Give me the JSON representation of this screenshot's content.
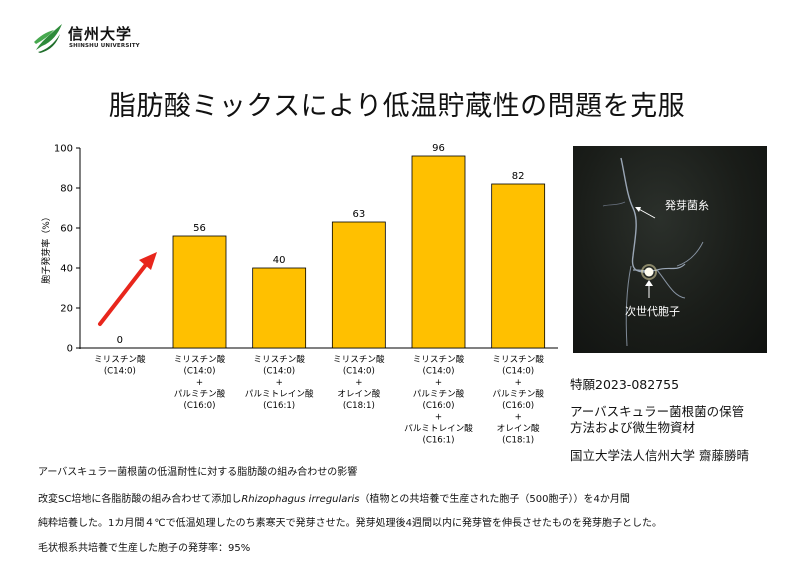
{
  "logo": {
    "name": "信州大学",
    "subtitle": "SHINSHU UNIVERSITY",
    "leaf_color": "#2e8b3a"
  },
  "title": "脂肪酸ミックスにより低温貯蔵性の問題を克服",
  "chart_data": {
    "type": "bar",
    "ylabel": "胞子発芽率（%）",
    "ylim": [
      0,
      100
    ],
    "yticks": [
      0,
      20,
      40,
      60,
      80,
      100
    ],
    "bar_color": "#ffc000",
    "arrow_color": "#e8261c",
    "categories": [
      [
        "ミリスチン酸",
        "(C14:0)"
      ],
      [
        "ミリスチン酸",
        "(C14:0)",
        "+",
        "パルミチン酸",
        "(C16:0)"
      ],
      [
        "ミリスチン酸",
        "(C14:0)",
        "+",
        "パルミトレイン酸",
        "(C16:1)"
      ],
      [
        "ミリスチン酸",
        "(C14:0)",
        "+",
        "オレイン酸",
        "(C18:1)"
      ],
      [
        "ミリスチン酸",
        "(C14:0)",
        "+",
        "パルミチン酸",
        "(C16:0)",
        "+",
        "パルミトレイン酸",
        "(C16:1)"
      ],
      [
        "ミリスチン酸",
        "(C14:0)",
        "+",
        "パルミチン酸",
        "(C16:0)",
        "+",
        "オレイン酸",
        "(C18:1)"
      ]
    ],
    "values": [
      0,
      56,
      40,
      63,
      96,
      82
    ],
    "grid": false,
    "legend": "none"
  },
  "photo": {
    "label_hypha": "発芽菌糸",
    "label_spore": "次世代胞子"
  },
  "patent": {
    "number": "特願2023-082755",
    "title_line1": "アーバスキュラー菌根菌の保管",
    "title_line2": "方法および微生物資材",
    "applicant": "国立大学法人信州大学 齋藤勝晴"
  },
  "caption": {
    "heading": "アーバスキュラー菌根菌の低温耐性に対する脂肪酸の組み合わせの影響",
    "line1_pre": "改変SC培地に各脂肪酸の組み合わせて添加し",
    "line1_species": "Rhizophagus irregularis",
    "line1_post": "（植物との共培養で生産された胞子（500胞子））を4か月間",
    "line2": "純粋培養した。1カ月間４℃で低温処理したのち素寒天で発芽させた。発芽処理後4週間以内に発芽管を伸長させたものを発芽胞子とした。",
    "line3": "毛状根系共培養で生産した胞子の発芽率：95%"
  }
}
